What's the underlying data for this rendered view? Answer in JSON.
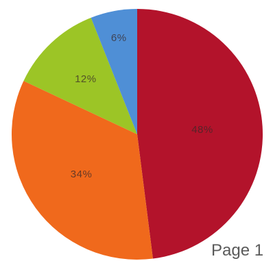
{
  "chart_data": {
    "type": "pie",
    "slices": [
      {
        "label": "48%",
        "value": 48,
        "color": "#b3132b"
      },
      {
        "label": "34%",
        "value": 34,
        "color": "#f0691c"
      },
      {
        "label": "12%",
        "value": 12,
        "color": "#9cc526"
      },
      {
        "label": "6%",
        "value": 6,
        "color": "#4f8fd6"
      }
    ],
    "start": "12 o'clock",
    "direction": "clockwise",
    "legend": "none",
    "data_labels": "inside"
  },
  "footer": {
    "page_text": "Page 1"
  }
}
